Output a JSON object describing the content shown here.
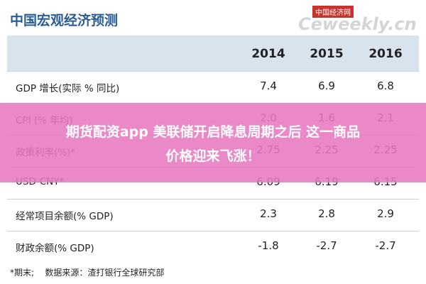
{
  "header": {
    "title": "中国宏观经济预测",
    "logo": "中国经济网",
    "watermark": "Ceweekly.cn"
  },
  "table": {
    "columns": [
      "2014",
      "2015",
      "2016"
    ],
    "rows": [
      [
        "GDP 增长(实际 % 同比)",
        "7.4",
        "6.9",
        "6.8"
      ],
      [
        "CPI (% 年均)",
        "2.0",
        "1.6",
        "2.1"
      ],
      [
        "政策利率(%)*",
        "2.75",
        "2.25",
        "2.25"
      ],
      [
        "USD-CNY*",
        "6.09",
        "6.19",
        "6.15"
      ],
      [
        "经常项目余额(% GDP)",
        "2.3",
        "2.8",
        "2.9"
      ],
      [
        "财政余额(% GDP)",
        "-1.8",
        "-2.7",
        "-2.7"
      ]
    ]
  },
  "footer": {
    "note": "*期末;",
    "source": "数据来源：渣打银行全球研究部"
  },
  "banner": {
    "line1": "期货配资app 美联储开启降息周期之后 这一商品",
    "line2": "价格迎来飞涨！"
  }
}
